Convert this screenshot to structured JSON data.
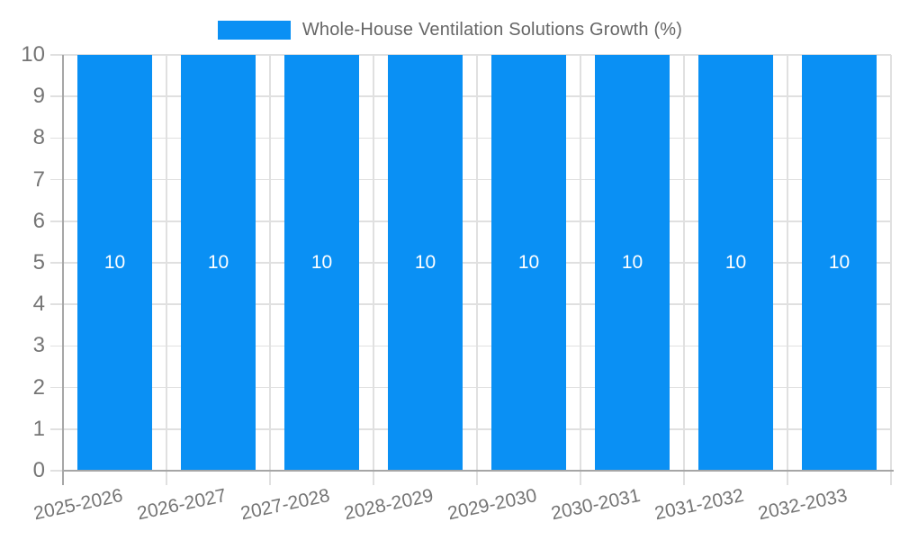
{
  "chart_data": {
    "type": "bar",
    "title": "",
    "legend": {
      "label": "Whole-House Ventilation Solutions Growth (%)",
      "position": "top"
    },
    "categories": [
      "2025-2026",
      "2026-2027",
      "2027-2028",
      "2028-2029",
      "2029-2030",
      "2030-2031",
      "2031-2032",
      "2032-2033"
    ],
    "values": [
      10,
      10,
      10,
      10,
      10,
      10,
      10,
      10
    ],
    "bar_labels": [
      "10",
      "10",
      "10",
      "10",
      "10",
      "10",
      "10",
      "10"
    ],
    "xlabel": "",
    "ylabel": "",
    "ylim": [
      0,
      10
    ],
    "y_ticks": [
      0,
      1,
      2,
      3,
      4,
      5,
      6,
      7,
      8,
      9,
      10
    ],
    "grid": true,
    "colors": {
      "bar": "#0A90F4",
      "grid": "#e0e0e0",
      "axis": "#a6a6a6",
      "tick_label": "#757575",
      "legend_text": "#666666",
      "bar_label": "#ffffff"
    }
  }
}
